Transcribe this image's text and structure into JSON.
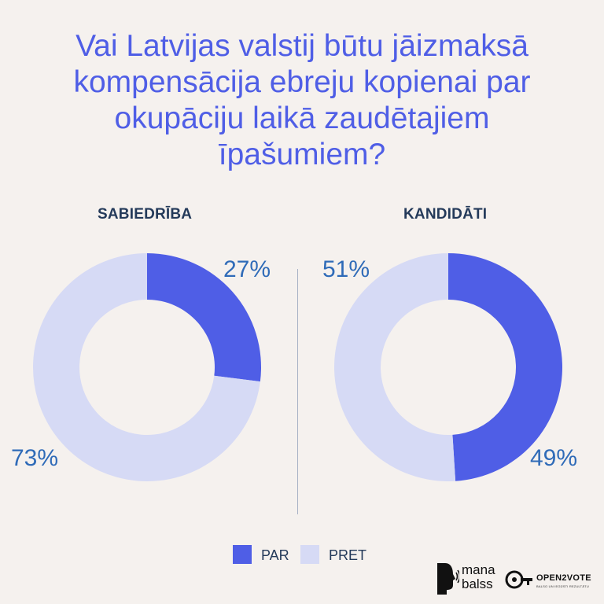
{
  "chart_data": [
    {
      "type": "pie",
      "title": "Vai Latvijas valstij būtu jāizmaksā kompensācija ebreju kopienai par okupāciju laikā zaudētajiem īpašumiem?",
      "subtitle": "SABIEDRĪBA",
      "categories": [
        "PAR",
        "PRET"
      ],
      "values": [
        27,
        73
      ],
      "labels": [
        "27%",
        "73%"
      ],
      "colors": [
        "#4f5ee6",
        "#d6daf5"
      ],
      "donut": true
    },
    {
      "type": "pie",
      "subtitle": "KANDIDĀTI",
      "categories": [
        "PAR",
        "PRET"
      ],
      "values": [
        49,
        51
      ],
      "labels": [
        "49%",
        "51%"
      ],
      "colors": [
        "#4f5ee6",
        "#d6daf5"
      ],
      "donut": true
    }
  ],
  "page": {
    "title": "Vai Latvijas valstij būtu jāizmaksā kompensācija ebreju kopienai par okupāciju laikā zaudētajiem īpašumiem?",
    "left_label": "SABIEDRĪBA",
    "right_label": "KANDIDĀTI"
  },
  "legend": {
    "position": "bottom-center",
    "items": [
      {
        "label": "PAR",
        "color": "#4f5ee6"
      },
      {
        "label": "PRET",
        "color": "#d6daf5"
      }
    ]
  },
  "logos": {
    "mana_balss": {
      "line1": "mana",
      "line2": "balss"
    },
    "open2vote": {
      "name": "OPEN2VOTE",
      "tagline": "BALSO UN IEGŪSTI REZULTĀTU"
    }
  }
}
